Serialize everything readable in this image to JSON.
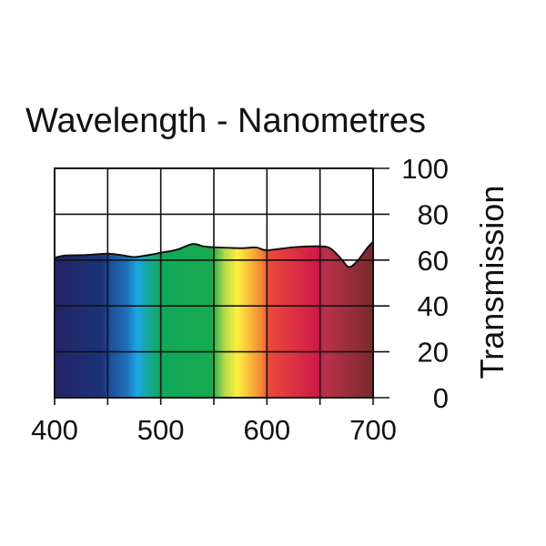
{
  "chart_data": {
    "type": "area",
    "title": "Wavelength - Nanometres",
    "xlabel": "",
    "ylabel": "Transmission",
    "xlim": [
      400,
      700
    ],
    "ylim": [
      0,
      100
    ],
    "xticks": [
      400,
      500,
      600,
      700
    ],
    "yticks": [
      0,
      20,
      40,
      60,
      80,
      100
    ],
    "x_tick_labels": [
      "400",
      "500",
      "600",
      "700"
    ],
    "y_tick_labels": [
      "0",
      "20",
      "40",
      "60",
      "80",
      "100"
    ],
    "x_grid": [
      400,
      450,
      500,
      550,
      600,
      650,
      700
    ],
    "grid": true,
    "series": [
      {
        "name": "Transmission",
        "x": [
          400,
          410,
          430,
          450,
          465,
          475,
          490,
          500,
          515,
          530,
          540,
          550,
          575,
          590,
          600,
          625,
          650,
          660,
          670,
          677,
          685,
          695,
          700
        ],
        "y": [
          61,
          62,
          62.2,
          62.8,
          62,
          61.3,
          62.3,
          63.2,
          64.5,
          67,
          66,
          65.6,
          65.2,
          65.5,
          64.3,
          65.6,
          66,
          65,
          60.5,
          57,
          59.5,
          65.5,
          68
        ]
      }
    ],
    "spectrum_fill": [
      {
        "nm": 400,
        "color": "#232466"
      },
      {
        "nm": 445,
        "color": "#1c3378"
      },
      {
        "nm": 452,
        "color": "#1d4e98"
      },
      {
        "nm": 468,
        "color": "#1f70b8"
      },
      {
        "nm": 478,
        "color": "#1aa8e6"
      },
      {
        "nm": 488,
        "color": "#16a89a"
      },
      {
        "nm": 500,
        "color": "#10a85a"
      },
      {
        "nm": 548,
        "color": "#18aa50"
      },
      {
        "nm": 560,
        "color": "#b4d84a"
      },
      {
        "nm": 572,
        "color": "#fdf03c"
      },
      {
        "nm": 582,
        "color": "#f9c43c"
      },
      {
        "nm": 595,
        "color": "#f28634"
      },
      {
        "nm": 602,
        "color": "#ea4a3c"
      },
      {
        "nm": 648,
        "color": "#d0184a"
      },
      {
        "nm": 655,
        "color": "#b8304a"
      },
      {
        "nm": 700,
        "color": "#7a2a2c"
      }
    ]
  }
}
